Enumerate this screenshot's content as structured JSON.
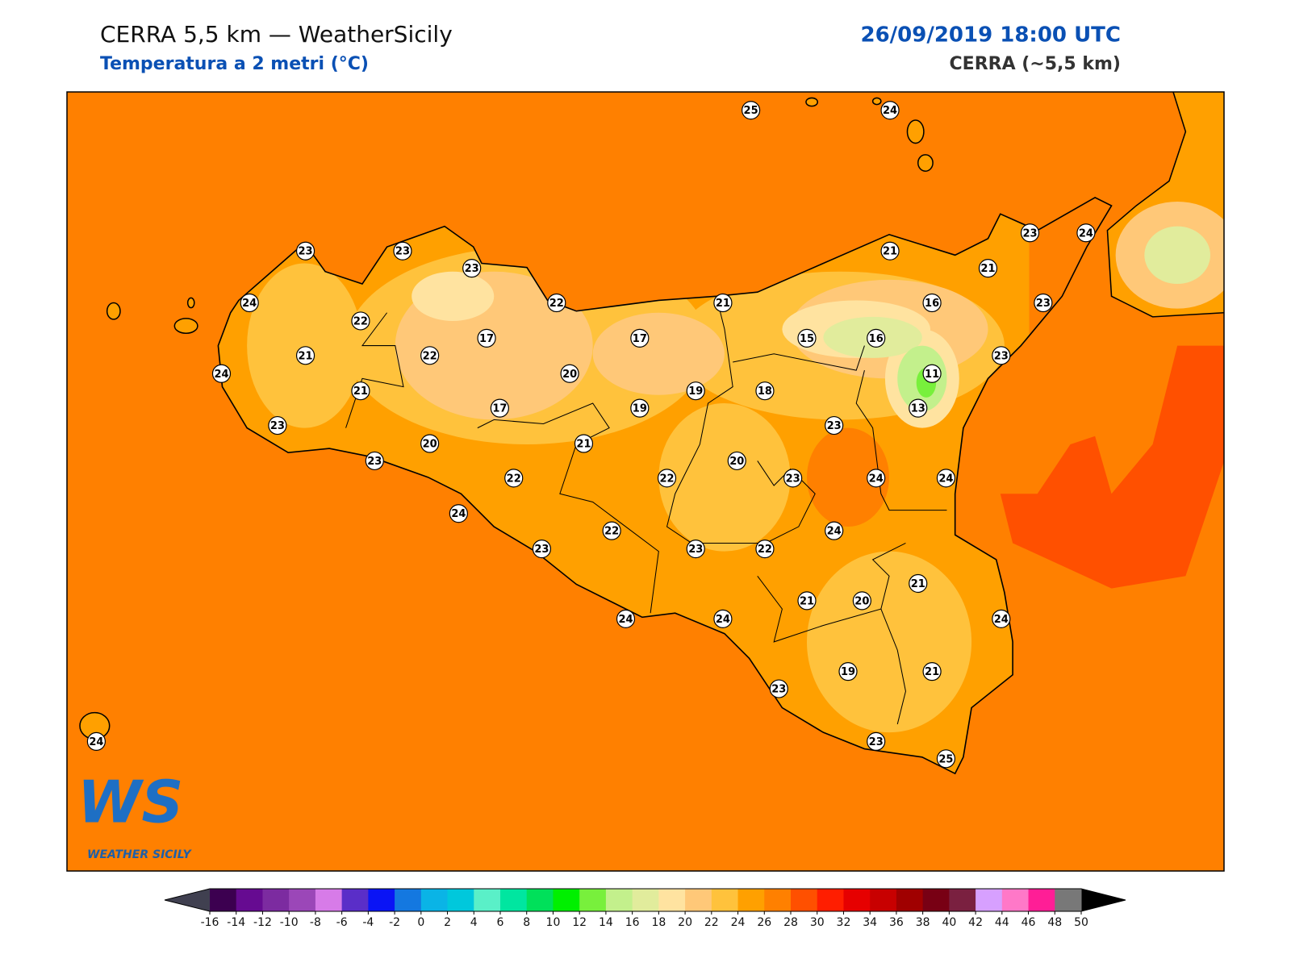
{
  "header": {
    "title": "CERRA 5,5 km — WeatherSicily",
    "subtitle": "Temperatura a 2 metri (°C)",
    "datetime": "26/09/2019 18:00 UTC",
    "model": "CERRA (~5,5 km)"
  },
  "stations": [
    25,
    24,
    23,
    23,
    23,
    24,
    22,
    22,
    21,
    21,
    23,
    24,
    21,
    16,
    23,
    21,
    24,
    22,
    17,
    17,
    15,
    16,
    23,
    11,
    20,
    21,
    19,
    18,
    17,
    19,
    13,
    23,
    23,
    20,
    21,
    20,
    23,
    22,
    22,
    23,
    24,
    24,
    24,
    24,
    22,
    23,
    23,
    22,
    21,
    20,
    21,
    24,
    24,
    24,
    19,
    21,
    23,
    23,
    25,
    24
  ],
  "logo": {
    "mark": "WS",
    "text": "WEATHER SICILY"
  },
  "colorbar": {
    "ticks": [
      -16,
      -14,
      -12,
      -10,
      -8,
      -6,
      -4,
      -2,
      0,
      2,
      4,
      6,
      8,
      10,
      12,
      14,
      16,
      18,
      20,
      22,
      24,
      26,
      28,
      30,
      32,
      34,
      36,
      38,
      40,
      42,
      44,
      46,
      48,
      50
    ],
    "colors": [
      "#3c0050",
      "#660b91",
      "#7c2ba0",
      "#9b47b8",
      "#d77be8",
      "#5a2ec8",
      "#0a14f5",
      "#1478e0",
      "#0ab4e6",
      "#00c8dc",
      "#5af0c8",
      "#00e6a0",
      "#00e05a",
      "#00f000",
      "#78f03c",
      "#c3f08c",
      "#e1ec9c",
      "#ffe3a0",
      "#ffc878",
      "#ffc23c",
      "#ffa000",
      "#ff8000",
      "#ff5000",
      "#ff1e00",
      "#e60000",
      "#c80000",
      "#a00000",
      "#780014",
      "#7a2040",
      "#d7a0ff",
      "#ff78c8",
      "#ff1e96",
      "#787878",
      "#373737"
    ],
    "under_color": "#404050",
    "over_color": "#000000"
  }
}
